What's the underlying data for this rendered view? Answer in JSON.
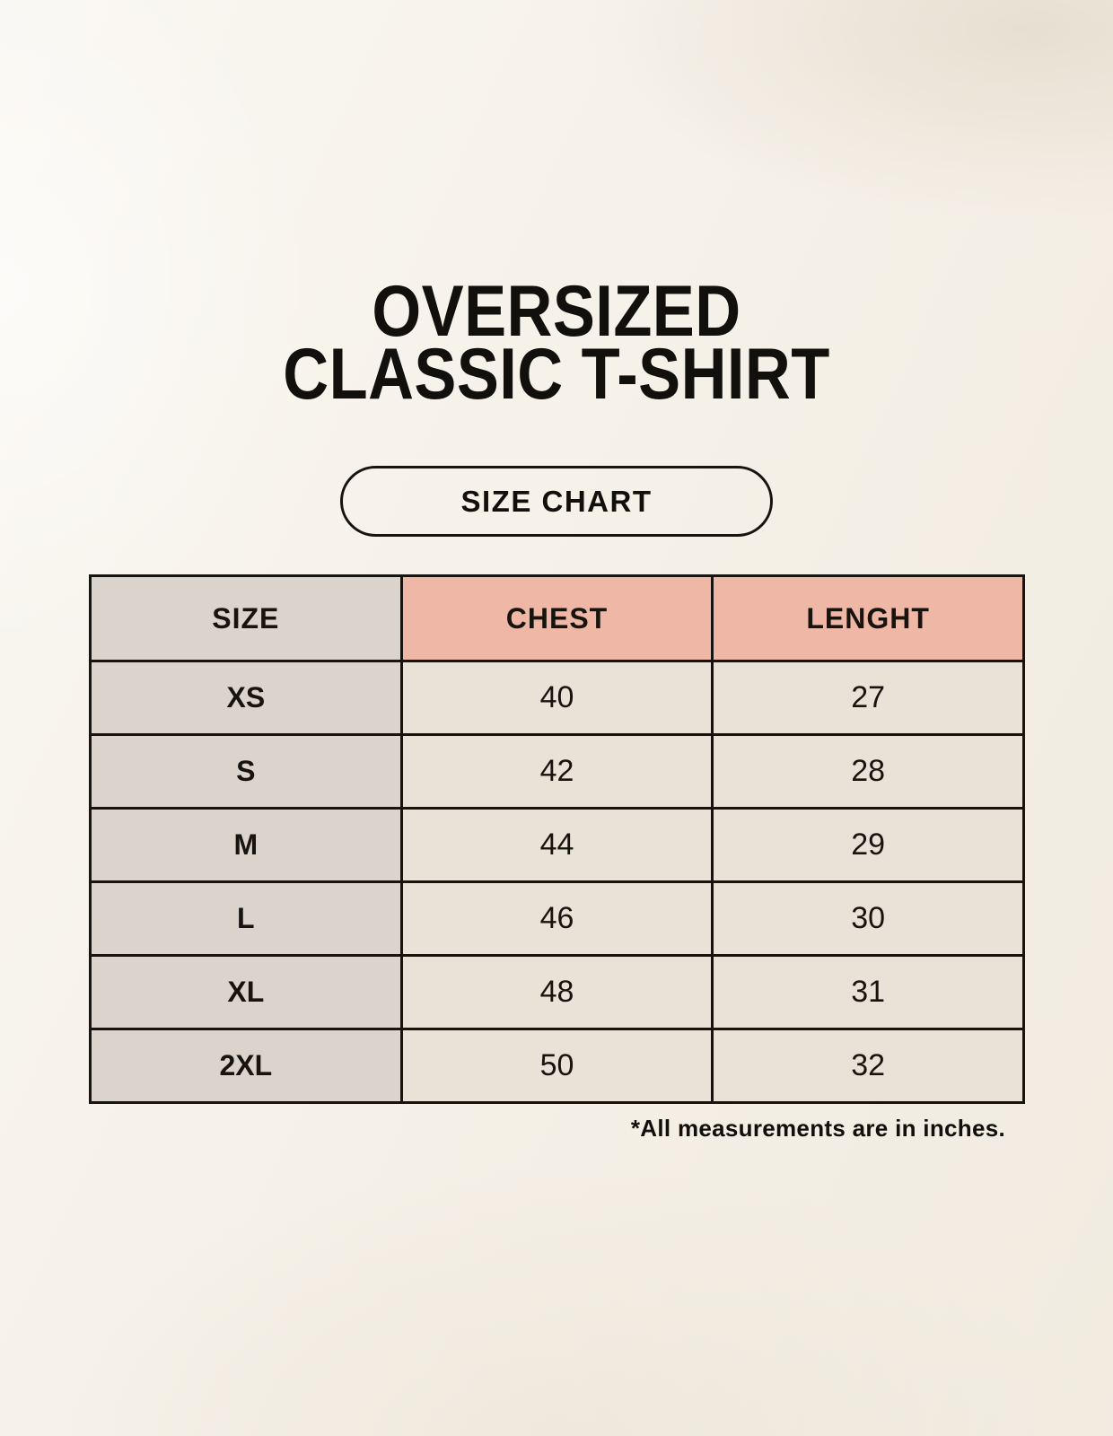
{
  "page": {
    "title": [
      "OVERSIZED",
      "CLASSIC T-SHIRT"
    ],
    "badge_label": "SIZE CHART",
    "footnote": "*All measurements are in inches."
  },
  "colors": {
    "background": "#f7f3eb",
    "header_accent_salmon": "#efb7a5",
    "size_column_gray": "#dbd4cd",
    "cell_beige": "#e9e2d7",
    "border_black": "#17140f"
  },
  "chart_data": {
    "type": "table",
    "title": "OVERSIZED CLASSIC T-SHIRT SIZE CHART",
    "columns": [
      "SIZE",
      "CHEST",
      "LENGHT"
    ],
    "rows": [
      [
        "XS",
        "40",
        "27"
      ],
      [
        "S",
        "42",
        "28"
      ],
      [
        "M",
        "44",
        "29"
      ],
      [
        "L",
        "46",
        "30"
      ],
      [
        "XL",
        "48",
        "31"
      ],
      [
        "2XL",
        "50",
        "32"
      ]
    ],
    "units": "inches",
    "footnote": "*All measurements are in inches."
  }
}
